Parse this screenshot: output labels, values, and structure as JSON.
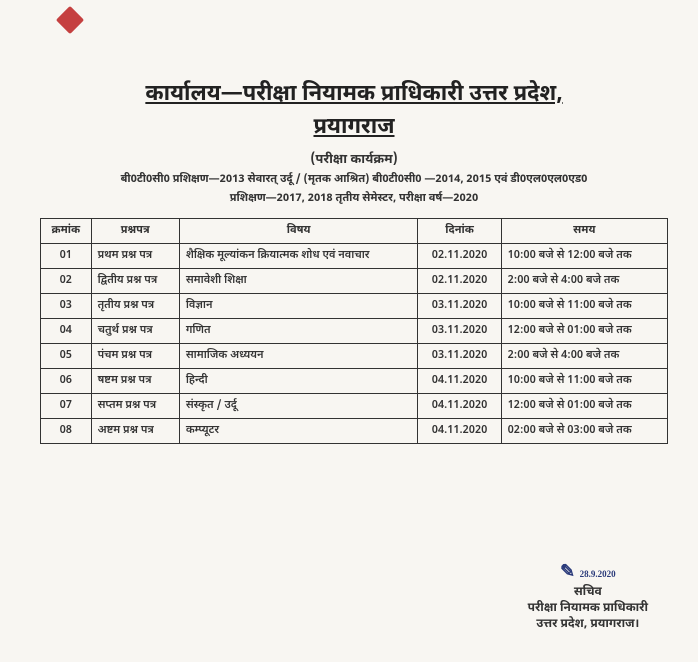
{
  "header": {
    "title_line1": "कार्यालय—परीक्षा नियामक प्राधिकारी उत्तर प्रदेश,",
    "title_line2": "प्रयागराज",
    "subtitle": "(परीक्षा कार्यक्रम)",
    "details_line1": "बी0टी0सी0 प्रशिक्षण—2013 सेवारत् उर्दू / (मृतक आश्रित) बी0टी0सी0 —2014, 2015 एवं डी0एल0एल0एड0",
    "details_line2": "प्रशिक्षण—2017, 2018 तृतीय सेमेस्टर, परीक्षा वर्ष—2020"
  },
  "table": {
    "columns": {
      "sn": "क्रमांक",
      "paper": "प्रश्नपत्र",
      "subject": "विषय",
      "date": "दिनांक",
      "time": "समय"
    },
    "rows": [
      {
        "sn": "01",
        "paper": "प्रथम प्रश्न पत्र",
        "subject": "शैक्षिक मूल्यांकन क्रियात्मक शोध एवं नवाचार",
        "date": "02.11.2020",
        "time": "10:00 बजे से 12:00 बजे तक"
      },
      {
        "sn": "02",
        "paper": "द्वितीय प्रश्न पत्र",
        "subject": "समावेशी शिक्षा",
        "date": "02.11.2020",
        "time": "2:00 बजे से 4:00 बजे तक"
      },
      {
        "sn": "03",
        "paper": "तृतीय प्रश्न पत्र",
        "subject": "विज्ञान",
        "date": "03.11.2020",
        "time": "10:00 बजे से 11:00 बजे तक"
      },
      {
        "sn": "04",
        "paper": "चतुर्थ प्रश्न पत्र",
        "subject": "गणित",
        "date": "03.11.2020",
        "time": "12:00 बजे से 01:00 बजे तक"
      },
      {
        "sn": "05",
        "paper": "पंचम प्रश्न पत्र",
        "subject": "सामाजिक अध्ययन",
        "date": "03.11.2020",
        "time": "2:00 बजे से 4:00 बजे तक"
      },
      {
        "sn": "06",
        "paper": "षष्टम प्रश्न पत्र",
        "subject": "हिन्दी",
        "date": "04.11.2020",
        "time": "10:00 बजे से 11:00 बजे तक"
      },
      {
        "sn": "07",
        "paper": "सप्तम प्रश्न पत्र",
        "subject": "संस्कृत / उर्दू",
        "date": "04.11.2020",
        "time": "12:00 बजे से 01:00 बजे तक"
      },
      {
        "sn": "08",
        "paper": "अष्टम प्रश्न पत्र",
        "subject": "कम्प्यूटर",
        "date": "04.11.2020",
        "time": "02:00 बजे से 03:00 बजे तक"
      }
    ]
  },
  "signature": {
    "scribble": "✎",
    "date": "28.9.2020",
    "line1": "सचिव",
    "line2": "परीक्षा नियामक प्राधिकारी",
    "line3": "उत्तर प्रदेश, प्रयागराज।"
  }
}
